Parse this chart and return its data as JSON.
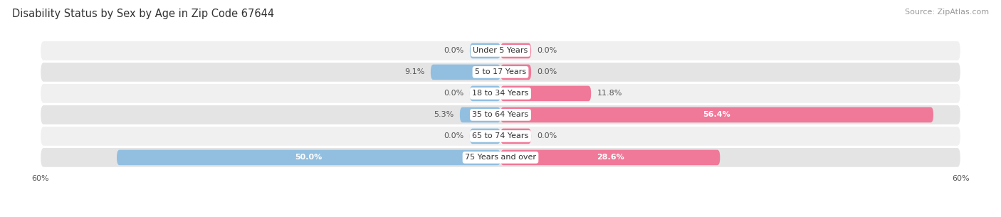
{
  "title": "Disability Status by Sex by Age in Zip Code 67644",
  "source": "Source: ZipAtlas.com",
  "categories": [
    "Under 5 Years",
    "5 to 17 Years",
    "18 to 34 Years",
    "35 to 64 Years",
    "65 to 74 Years",
    "75 Years and over"
  ],
  "male_values": [
    0.0,
    9.1,
    0.0,
    5.3,
    0.0,
    50.0
  ],
  "female_values": [
    0.0,
    0.0,
    11.8,
    56.4,
    0.0,
    28.6
  ],
  "male_color": "#92bfe0",
  "female_color": "#f07898",
  "row_bg_color_odd": "#f0f0f0",
  "row_bg_color_even": "#e4e4e4",
  "xlim": 60.0,
  "title_fontsize": 10.5,
  "source_fontsize": 8,
  "category_fontsize": 8,
  "value_fontsize": 8,
  "legend_fontsize": 9,
  "stub_size": 4.0,
  "inside_label_threshold": 15.0
}
